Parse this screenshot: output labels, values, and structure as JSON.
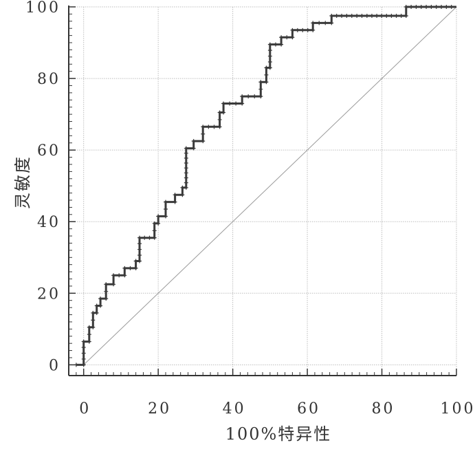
{
  "chart_data": {
    "type": "line",
    "title": "",
    "xlabel": "100%特异性",
    "ylabel": "灵敏度",
    "xlim": [
      -4,
      100
    ],
    "ylim": [
      -3,
      100
    ],
    "xticks": [
      0,
      20,
      40,
      60,
      80,
      100
    ],
    "yticks": [
      0,
      20,
      40,
      60,
      80,
      100
    ],
    "xtick_labels": [
      "0",
      "20",
      "40",
      "60",
      "80",
      "100"
    ],
    "ytick_labels": [
      "0",
      "20",
      "40",
      "60",
      "80",
      "100"
    ],
    "grid": true,
    "legend": "none",
    "series": [
      {
        "kind": "roc-step",
        "color": "#3a3a3a",
        "points": [
          [
            -2,
            0
          ],
          [
            0,
            0
          ],
          [
            0,
            6.5
          ],
          [
            1.5,
            6.5
          ],
          [
            1.5,
            10.5
          ],
          [
            2.5,
            10.5
          ],
          [
            2.5,
            14.5
          ],
          [
            3.5,
            14.5
          ],
          [
            3.5,
            16.5
          ],
          [
            4.5,
            16.5
          ],
          [
            4.5,
            18.5
          ],
          [
            6,
            18.5
          ],
          [
            6,
            22.5
          ],
          [
            8,
            22.5
          ],
          [
            8,
            25
          ],
          [
            11,
            25
          ],
          [
            11,
            27
          ],
          [
            14,
            27
          ],
          [
            14,
            29
          ],
          [
            15,
            29
          ],
          [
            15,
            35.5
          ],
          [
            19,
            35.5
          ],
          [
            19,
            39.5
          ],
          [
            20,
            39.5
          ],
          [
            20,
            41.5
          ],
          [
            22,
            41.5
          ],
          [
            22,
            45.5
          ],
          [
            24.5,
            45.5
          ],
          [
            24.5,
            47.5
          ],
          [
            26.5,
            47.5
          ],
          [
            26.5,
            49.5
          ],
          [
            27.5,
            49.5
          ],
          [
            27.5,
            60.5
          ],
          [
            29.5,
            60.5
          ],
          [
            29.5,
            62.5
          ],
          [
            32,
            62.5
          ],
          [
            32,
            66.5
          ],
          [
            36.5,
            66.5
          ],
          [
            36.5,
            70.5
          ],
          [
            37.5,
            70.5
          ],
          [
            37.5,
            73
          ],
          [
            42.5,
            73
          ],
          [
            42.5,
            75
          ],
          [
            47.5,
            75
          ],
          [
            47.5,
            79
          ],
          [
            49,
            79
          ],
          [
            49,
            83
          ],
          [
            50,
            83
          ],
          [
            50,
            89.5
          ],
          [
            53,
            89.5
          ],
          [
            53,
            91.5
          ],
          [
            56,
            91.5
          ],
          [
            56,
            93.5
          ],
          [
            61.5,
            93.5
          ],
          [
            61.5,
            95.5
          ],
          [
            66.5,
            95.5
          ],
          [
            66.5,
            97.5
          ],
          [
            76,
            97.5
          ],
          [
            86.5,
            97.5
          ],
          [
            86.5,
            100
          ],
          [
            100,
            100
          ]
        ]
      },
      {
        "kind": "reference-diagonal",
        "color": "#9a9a9a",
        "points": [
          [
            0,
            0
          ],
          [
            100,
            100
          ]
        ]
      }
    ]
  }
}
